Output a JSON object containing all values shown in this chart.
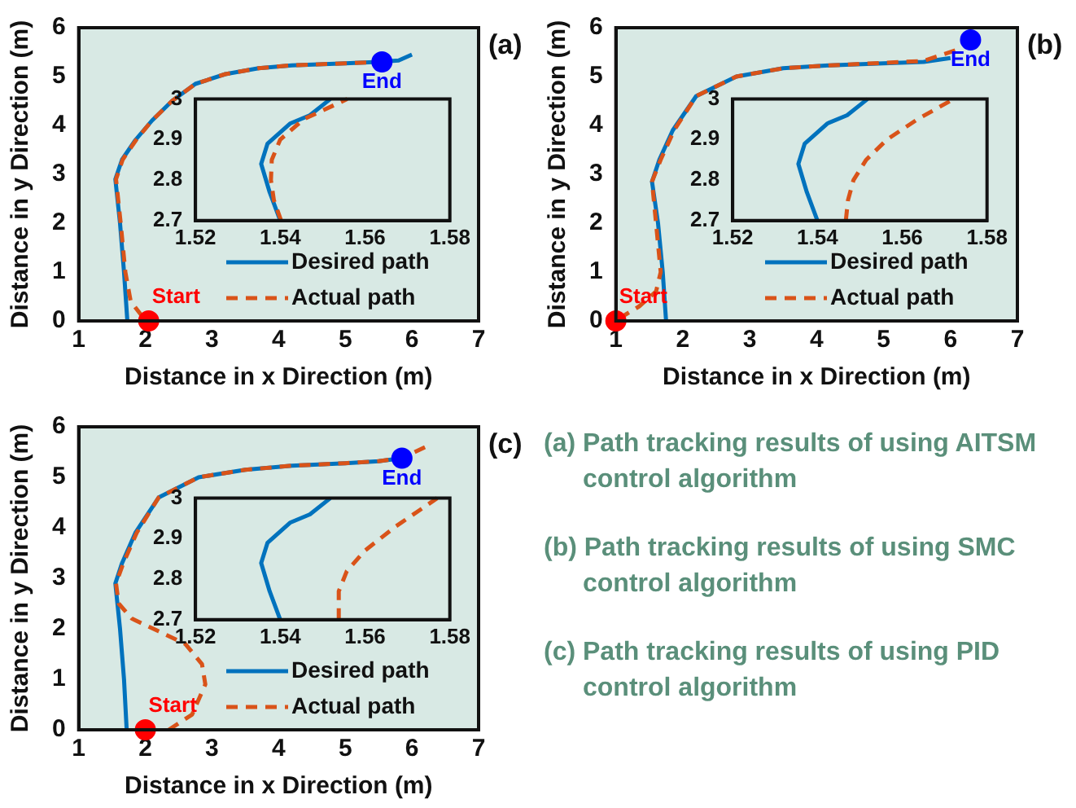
{
  "chart_data": [
    {
      "type": "line",
      "title": "(a)",
      "xlabel": "Distance in x Direction (m)",
      "ylabel": "Distance in y Direction (m)",
      "xlim": [
        1,
        7
      ],
      "xticks": [
        1,
        2,
        3,
        4,
        5,
        6,
        7
      ],
      "ylim": [
        0,
        6
      ],
      "yticks": [
        0,
        1,
        2,
        3,
        4,
        5,
        6
      ],
      "grid": false,
      "legend": "bottom right",
      "series": [
        {
          "name": "Desired path",
          "color": "#0072bd",
          "line_style": "solid",
          "x": [
            1.73,
            1.68,
            1.62,
            1.55,
            1.65,
            1.85,
            2.1,
            2.4,
            2.75,
            3.2,
            3.7,
            4.2,
            5,
            5.5,
            5.8,
            6
          ],
          "values": [
            0,
            1,
            2,
            2.9,
            3.3,
            3.7,
            4.1,
            4.5,
            4.85,
            5.05,
            5.17,
            5.23,
            5.27,
            5.3,
            5.33,
            5.45
          ]
        },
        {
          "name": "Actual path",
          "color": "#d95319",
          "line_style": "dashed",
          "x": [
            1.95,
            1.78,
            1.7,
            1.63,
            1.56,
            1.66,
            1.86,
            2.1,
            2.4,
            2.75,
            3.2,
            3.7,
            4.2,
            5,
            5.5
          ],
          "values": [
            0.1,
            0.4,
            1,
            2,
            2.9,
            3.3,
            3.7,
            4.1,
            4.5,
            4.85,
            5.05,
            5.17,
            5.23,
            5.27,
            5.3
          ]
        },
        {
          "type": "scatter",
          "color": "#ff0000",
          "marker": "circle",
          "x": [
            2.05
          ],
          "values": [
            0
          ]
        },
        {
          "type": "scatter",
          "color": "#0000ff",
          "marker": "circle",
          "x": [
            5.55
          ],
          "values": [
            5.3
          ]
        }
      ],
      "annotations": [
        {
          "text": "Start",
          "x": 2.05,
          "y": 0
        },
        {
          "text": "End",
          "x": 5.55,
          "y": 5.3
        }
      ]
    },
    {
      "type": "line",
      "xlim": [
        1.52,
        1.58
      ],
      "xticks": [
        1.52,
        1.54,
        1.56,
        1.58
      ],
      "ylim": [
        2.7,
        3
      ],
      "yticks": [
        2.7,
        2.8,
        2.9,
        3
      ],
      "grid": false,
      "series": [
        {
          "color": "#0072bd",
          "line_style": "solid",
          "x": [
            1.54,
            1.5375,
            1.5355,
            1.537,
            1.5424,
            1.547,
            1.5518
          ],
          "values": [
            2.7,
            2.77,
            2.84,
            2.89,
            2.94,
            2.96,
            3.0
          ]
        },
        {
          "color": "#d95319",
          "line_style": "dashed",
          "x": [
            1.5402,
            1.5385,
            1.5378,
            1.538,
            1.54,
            1.5455,
            1.5558
          ],
          "values": [
            2.7,
            2.75,
            2.8,
            2.85,
            2.9,
            2.95,
            3.0
          ]
        }
      ]
    },
    {
      "type": "line",
      "title": "(b)",
      "xlabel": "Distance in x Direction (m)",
      "ylabel": "Distance in y Direction (m)",
      "xlim": [
        1,
        7
      ],
      "xticks": [
        1,
        2,
        3,
        4,
        5,
        6,
        7
      ],
      "ylim": [
        0,
        6
      ],
      "yticks": [
        0,
        1,
        2,
        3,
        4,
        5,
        6
      ],
      "grid": false,
      "legend": "bottom right",
      "series": [
        {
          "name": "Desired path",
          "color": "#0072bd",
          "line_style": "solid",
          "x": [
            1.75,
            1.7,
            1.63,
            1.54,
            1.65,
            1.85,
            2.2,
            2.8,
            3.5,
            4.2,
            5,
            5.6,
            6
          ],
          "values": [
            0,
            1,
            2,
            2.85,
            3.3,
            3.9,
            4.6,
            5.0,
            5.17,
            5.23,
            5.27,
            5.3,
            5.38
          ]
        },
        {
          "name": "Actual path",
          "color": "#d95319",
          "line_style": "dashed",
          "x": [
            1.05,
            1.35,
            1.6,
            1.67,
            1.6,
            1.54,
            1.67,
            1.87,
            2.2,
            2.8,
            3.5,
            4.2,
            5,
            5.6,
            6.1
          ],
          "values": [
            0.05,
            0.3,
            0.6,
            1,
            2,
            2.85,
            3.3,
            3.9,
            4.6,
            5.0,
            5.17,
            5.23,
            5.28,
            5.32,
            5.55
          ]
        },
        {
          "type": "scatter",
          "color": "#ff0000",
          "marker": "circle",
          "x": [
            1
          ],
          "values": [
            0
          ]
        },
        {
          "type": "scatter",
          "color": "#0000ff",
          "marker": "circle",
          "x": [
            6.3
          ],
          "values": [
            5.75
          ]
        }
      ],
      "annotations": [
        {
          "text": "Start",
          "x": 1,
          "y": 0
        },
        {
          "text": "End",
          "x": 6.3,
          "y": 5.75
        }
      ]
    },
    {
      "type": "line",
      "xlim": [
        1.52,
        1.58
      ],
      "xticks": [
        1.52,
        1.54,
        1.56,
        1.58
      ],
      "ylim": [
        2.7,
        3
      ],
      "yticks": [
        2.7,
        2.8,
        2.9,
        3
      ],
      "grid": false,
      "series": [
        {
          "color": "#0072bd",
          "line_style": "solid",
          "x": [
            1.54,
            1.5375,
            1.5355,
            1.537,
            1.5424,
            1.547,
            1.5518
          ],
          "values": [
            2.7,
            2.77,
            2.84,
            2.89,
            2.94,
            2.96,
            3.0
          ]
        },
        {
          "color": "#d95319",
          "line_style": "dashed",
          "x": [
            1.5467,
            1.5472,
            1.5485,
            1.5515,
            1.5564,
            1.5636,
            1.5721
          ],
          "values": [
            2.7,
            2.75,
            2.8,
            2.85,
            2.9,
            2.95,
            3.0
          ]
        }
      ]
    },
    {
      "type": "line",
      "title": "(c)",
      "xlabel": "Distance in x Direction (m)",
      "ylabel": "Distance in y Direction (m)",
      "xlim": [
        1,
        7
      ],
      "xticks": [
        1,
        2,
        3,
        4,
        5,
        6,
        7
      ],
      "ylim": [
        0,
        6
      ],
      "yticks": [
        0,
        1,
        2,
        3,
        4,
        5,
        6
      ],
      "grid": false,
      "legend": "bottom right",
      "series": [
        {
          "name": "Desired path",
          "color": "#0072bd",
          "line_style": "solid",
          "x": [
            1.72,
            1.68,
            1.62,
            1.55,
            1.65,
            1.85,
            2.2,
            2.8,
            3.5,
            4.2,
            5,
            5.5,
            5.85
          ],
          "values": [
            0,
            1,
            2,
            2.9,
            3.3,
            3.9,
            4.6,
            5.0,
            5.15,
            5.23,
            5.28,
            5.32,
            5.38
          ]
        },
        {
          "name": "Actual path",
          "color": "#d95319",
          "line_style": "dashed",
          "x": [
            2.35,
            2.7,
            2.9,
            2.85,
            2.6,
            2.2,
            1.8,
            1.6,
            1.56,
            1.67,
            1.87,
            2.2,
            2.8,
            3.5,
            4.2,
            5,
            5.5,
            5.85,
            6.2
          ],
          "values": [
            0,
            0.3,
            0.9,
            1.3,
            1.7,
            1.95,
            2.2,
            2.5,
            2.9,
            3.3,
            3.9,
            4.6,
            5.0,
            5.15,
            5.23,
            5.28,
            5.32,
            5.38,
            5.6
          ]
        },
        {
          "type": "scatter",
          "color": "#ff0000",
          "marker": "circle",
          "x": [
            2
          ],
          "values": [
            0
          ]
        },
        {
          "type": "scatter",
          "color": "#0000ff",
          "marker": "circle",
          "x": [
            5.85
          ],
          "values": [
            5.38
          ]
        }
      ],
      "annotations": [
        {
          "text": "Start",
          "x": 2,
          "y": 0
        },
        {
          "text": "End",
          "x": 5.85,
          "y": 5.38
        }
      ]
    },
    {
      "type": "line",
      "xlim": [
        1.52,
        1.58
      ],
      "xticks": [
        1.52,
        1.54,
        1.56,
        1.58
      ],
      "ylim": [
        2.7,
        3
      ],
      "yticks": [
        2.7,
        2.8,
        2.9,
        3
      ],
      "grid": false,
      "series": [
        {
          "color": "#0072bd",
          "line_style": "solid",
          "x": [
            1.54,
            1.5375,
            1.5355,
            1.537,
            1.5424,
            1.547,
            1.5518
          ],
          "values": [
            2.7,
            2.77,
            2.84,
            2.89,
            2.94,
            2.96,
            3.0
          ]
        },
        {
          "color": "#d95319",
          "line_style": "dashed",
          "x": [
            1.5538,
            1.5538,
            1.5557,
            1.5599,
            1.5672,
            1.577
          ],
          "values": [
            2.7,
            2.77,
            2.82,
            2.87,
            2.93,
            3.0
          ]
        }
      ]
    },
    {
      "type": "other",
      "annotations": [
        "(a) Path tracking results of using AITSM control algorithm",
        "(b) Path tracking results of using SMC control algorithm",
        "(c) Path tracking results of using PID control algorithm"
      ]
    }
  ]
}
